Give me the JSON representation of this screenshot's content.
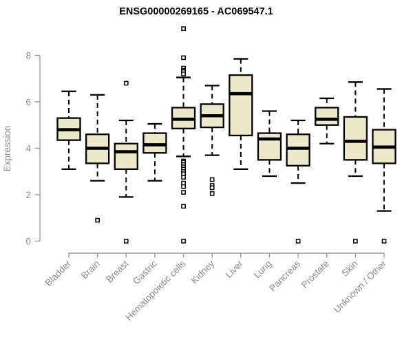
{
  "colors": {
    "box_fill": "#ede7cb",
    "box_border": "#000000",
    "median": "#000000",
    "whisker": "#000000",
    "outlier_fill": "#ffffff",
    "outlier_border": "#000000",
    "axis": "#999999",
    "tick_text": "#8c8c8c",
    "title_text": "#000000",
    "background": "#ffffff"
  },
  "chart_data": {
    "type": "boxplot",
    "title": "ENSG00000269165 - AC069547.1",
    "xlabel": "",
    "ylabel": "Expression",
    "ylim": [
      0,
      8
    ],
    "yticks": [
      0,
      2,
      4,
      6,
      8
    ],
    "grid": "off",
    "legend": "none",
    "categories": [
      "Bladder",
      "Brain",
      "Breast",
      "Gastric",
      "Hematopoietic cells",
      "Kidney",
      "Liver",
      "Lung",
      "Pancreas",
      "Prostate",
      "Skin",
      "Unknown / Other"
    ],
    "boxes": [
      {
        "category": "Bladder",
        "low": 3.1,
        "q1": 4.35,
        "median": 4.8,
        "q3": 5.3,
        "high": 6.45,
        "outliers": []
      },
      {
        "category": "Brain",
        "low": 2.6,
        "q1": 3.35,
        "median": 4.0,
        "q3": 4.6,
        "high": 6.3,
        "outliers": [
          0.9
        ]
      },
      {
        "category": "Breast",
        "low": 1.9,
        "q1": 3.1,
        "median": 3.85,
        "q3": 4.2,
        "high": 5.2,
        "outliers": [
          6.8,
          0
        ]
      },
      {
        "category": "Gastric",
        "low": 2.6,
        "q1": 3.8,
        "median": 4.15,
        "q3": 4.65,
        "high": 5.05,
        "outliers": []
      },
      {
        "category": "Hematopoietic cells",
        "low": 3.65,
        "q1": 4.85,
        "median": 5.25,
        "q3": 5.75,
        "high": 7.05,
        "outliers": [
          9.15,
          7.9,
          7.45,
          7.35,
          7.3,
          7.2,
          3.45,
          3.4,
          3.3,
          3.2,
          3.1,
          3.0,
          2.9,
          2.75,
          2.5,
          2.35,
          2.1,
          1.5,
          0
        ]
      },
      {
        "category": "Kidney",
        "low": 3.7,
        "q1": 4.9,
        "median": 5.4,
        "q3": 5.9,
        "high": 6.7,
        "outliers": [
          2.65,
          2.4,
          2.3,
          2.05
        ]
      },
      {
        "category": "Liver",
        "low": 3.1,
        "q1": 4.55,
        "median": 6.35,
        "q3": 7.15,
        "high": 7.85,
        "outliers": []
      },
      {
        "category": "Lung",
        "low": 2.8,
        "q1": 3.5,
        "median": 4.4,
        "q3": 4.65,
        "high": 5.6,
        "outliers": []
      },
      {
        "category": "Pancreas",
        "low": 2.5,
        "q1": 3.25,
        "median": 4.0,
        "q3": 4.6,
        "high": 5.2,
        "outliers": [
          0
        ]
      },
      {
        "category": "Prostate",
        "low": 4.2,
        "q1": 5.0,
        "median": 5.25,
        "q3": 5.75,
        "high": 6.15,
        "outliers": []
      },
      {
        "category": "Skin",
        "low": 2.8,
        "q1": 3.5,
        "median": 4.3,
        "q3": 5.35,
        "high": 6.85,
        "outliers": [
          0
        ]
      },
      {
        "category": "Unknown / Other",
        "low": 1.3,
        "q1": 3.35,
        "median": 4.05,
        "q3": 4.8,
        "high": 6.55,
        "outliers": [
          0
        ]
      }
    ]
  }
}
